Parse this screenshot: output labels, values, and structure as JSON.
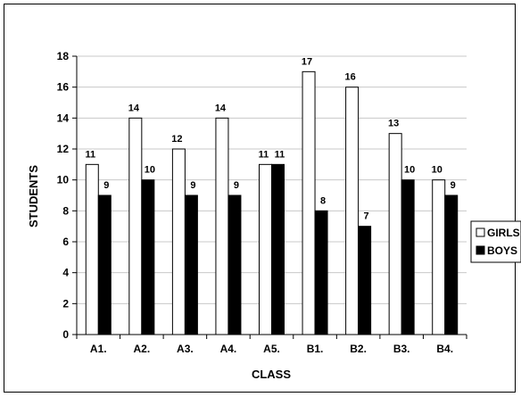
{
  "chart_data": {
    "type": "bar",
    "categories": [
      "A1.",
      "A2.",
      "A3.",
      "A4.",
      "A5.",
      "B1.",
      "B2.",
      "B3.",
      "B4."
    ],
    "series": [
      {
        "name": "GIRLS",
        "values": [
          11,
          14,
          12,
          14,
          11,
          17,
          16,
          13,
          10
        ],
        "color": "#ffffff"
      },
      {
        "name": "BOYS",
        "values": [
          9,
          10,
          9,
          9,
          11,
          8,
          7,
          10,
          9
        ],
        "color": "#000000"
      }
    ],
    "title": "",
    "xlabel": "CLASS",
    "ylabel": "STUDENTS",
    "ylim": [
      0,
      18
    ],
    "yticks": [
      0,
      2,
      4,
      6,
      8,
      10,
      12,
      14,
      16,
      18
    ],
    "grid": true,
    "legend": "right",
    "data_labels": true
  }
}
